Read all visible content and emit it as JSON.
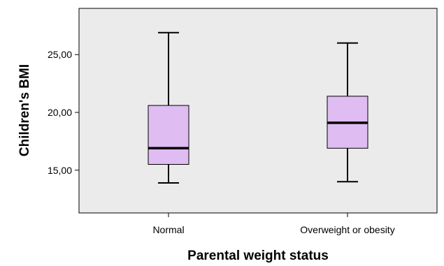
{
  "chart_data": {
    "type": "boxplot",
    "xlabel": "Parental weight status",
    "ylabel": "Children's BMI",
    "ylim": [
      11.3,
      29.0
    ],
    "yticks": [
      15,
      20,
      25
    ],
    "ytick_labels": [
      "15,00",
      "20,00",
      "25,00"
    ],
    "grid": false,
    "colors": {
      "box_fill": "#dfbcf2",
      "plot_bg": "#ebebeb",
      "line": "#000000"
    },
    "categories": [
      "Normal",
      "Overweight or obesity"
    ],
    "boxes": [
      {
        "category": "Normal",
        "min": 13.9,
        "q1": 15.5,
        "median": 16.9,
        "q3": 20.6,
        "max": 26.9
      },
      {
        "category": "Overweight or obesity",
        "min": 14.0,
        "q1": 16.9,
        "median": 19.1,
        "q3": 21.4,
        "max": 26.0
      }
    ]
  }
}
